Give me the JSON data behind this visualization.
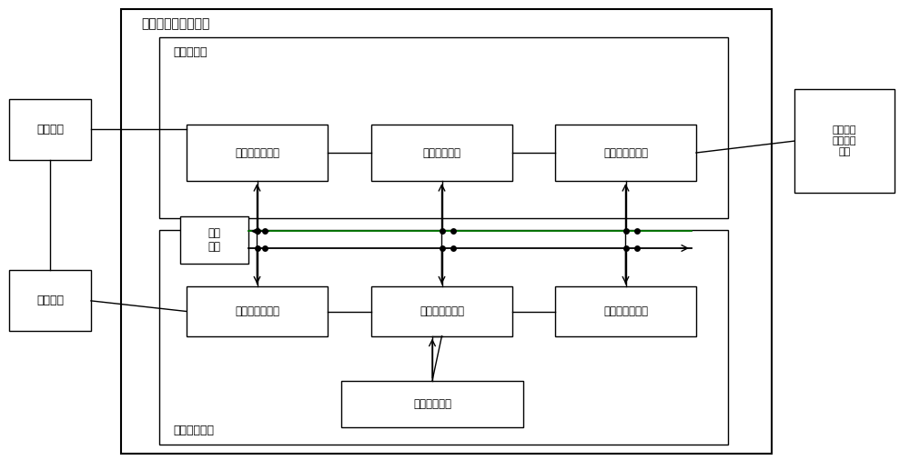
{
  "fig_width": 10.0,
  "fig_height": 5.17,
  "bg_color": "#ffffff",
  "box_fc": "#ffffff",
  "box_ec": "#000000",
  "title_outer": "开关型功率放大装置",
  "title_power": "功率主电路",
  "title_ctrl": "控制保护电路",
  "supply_label": "供电电源",
  "aux_label": "辅助电源",
  "tested_label": "被测电机\n控制驱动\n装置",
  "power_conv_label": "电源侧变流电路",
  "dc_bus_label": "直流母线电路",
  "sim_conv_label": "模拟侧变流电路",
  "protect_label": "保护\n电路",
  "power_ctrl_label": "电源侧控制电路",
  "dc_ctrl_label": "直流侧控制电路",
  "sim_ctrl_label": "模拟侧控制电路",
  "comm_label": "通信接口电路",
  "green_color": "#007700"
}
